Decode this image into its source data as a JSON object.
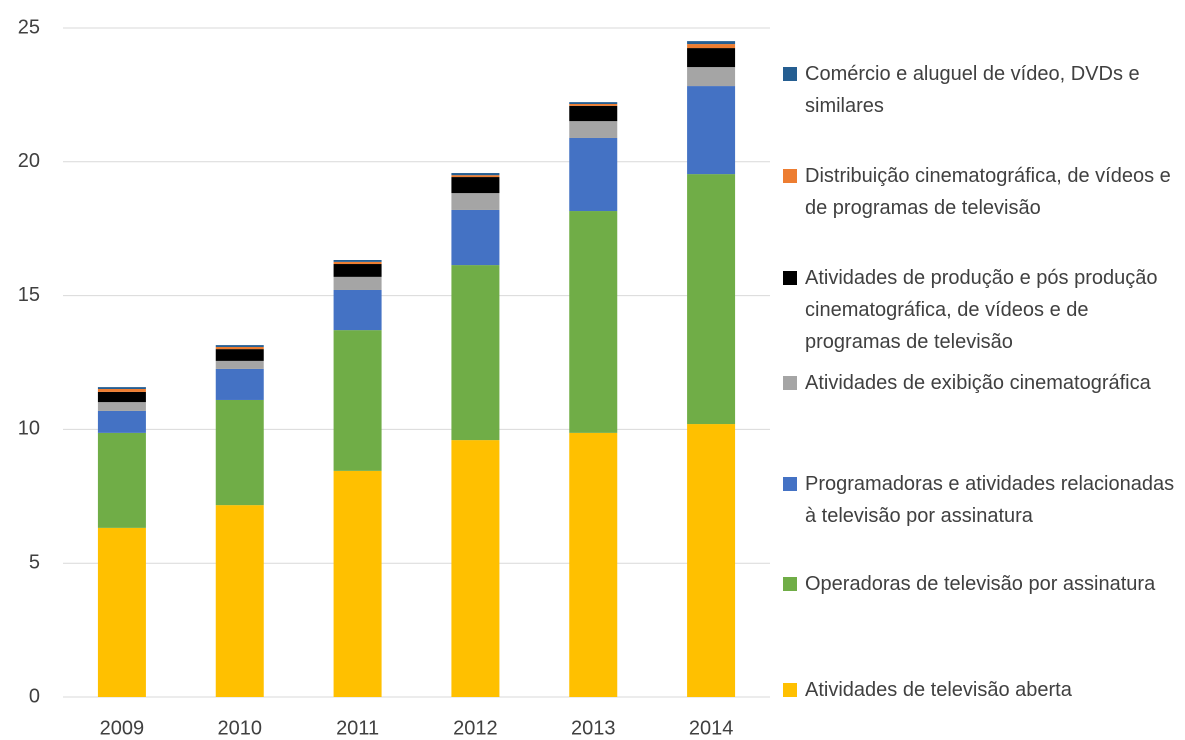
{
  "chart_data": {
    "type": "stacked_bar",
    "categories": [
      "2009",
      "2010",
      "2011",
      "2012",
      "2013",
      "2014"
    ],
    "series": [
      {
        "name": "Atividades de televisão aberta",
        "color": "#FFC000",
        "values": [
          6.32,
          7.17,
          8.45,
          9.6,
          9.87,
          10.2
        ]
      },
      {
        "name": "Operadoras de televisão por assinatura",
        "color": "#70AD47",
        "values": [
          3.55,
          3.93,
          5.26,
          6.54,
          8.29,
          9.34
        ]
      },
      {
        "name": "Programadoras e atividades relacionadas à televisão por assinatura",
        "color": "#4472C4",
        "values": [
          0.82,
          1.16,
          1.5,
          2.06,
          2.73,
          3.29
        ]
      },
      {
        "name": "Atividades de exibição cinematográfica",
        "color": "#A5A5A5",
        "values": [
          0.33,
          0.3,
          0.49,
          0.63,
          0.63,
          0.71
        ]
      },
      {
        "name": "Atividades de produção e pós produção cinematográfica, de vídeos e de programas de televisão",
        "color": "#000000",
        "values": [
          0.38,
          0.44,
          0.48,
          0.6,
          0.57,
          0.71
        ]
      },
      {
        "name": "Distribuição cinematográfica, de vídeos e de programas de televisão",
        "color": "#ED7D31",
        "values": [
          0.11,
          0.08,
          0.08,
          0.07,
          0.07,
          0.15
        ]
      },
      {
        "name": "Comércio e aluguel de vídeo, DVDs e similares",
        "color": "#255E91",
        "values": [
          0.07,
          0.07,
          0.07,
          0.08,
          0.07,
          0.11
        ]
      }
    ],
    "ylim": [
      0,
      25
    ],
    "yticks": [
      0,
      5,
      10,
      15,
      20,
      25
    ],
    "grid": true
  }
}
